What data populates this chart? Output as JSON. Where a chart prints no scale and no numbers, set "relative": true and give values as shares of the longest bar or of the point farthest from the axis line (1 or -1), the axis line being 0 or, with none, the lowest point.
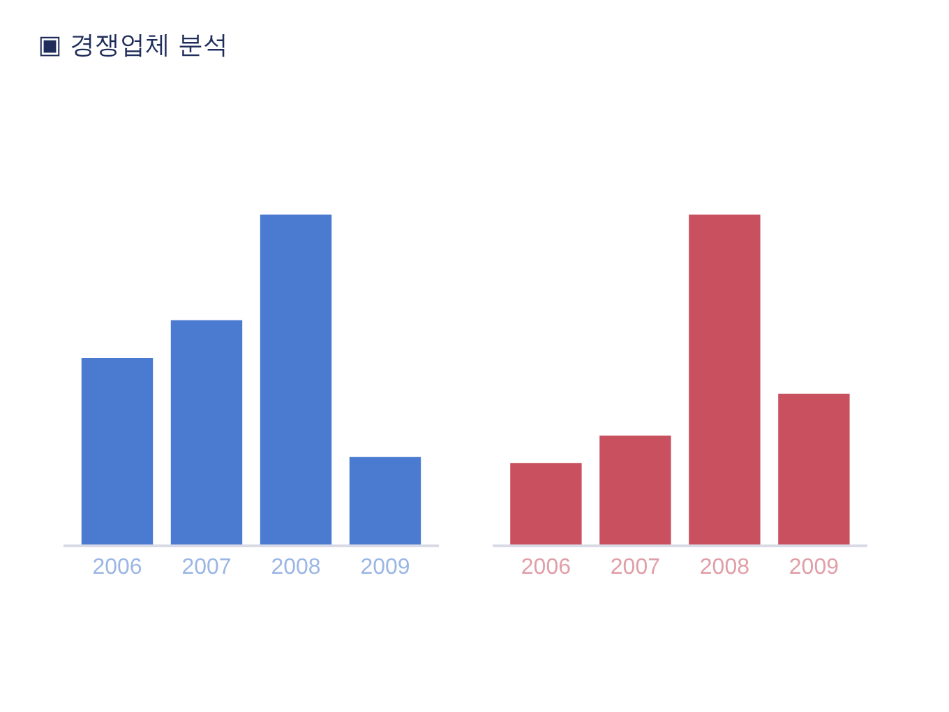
{
  "chart_data": [
    {
      "type": "bar",
      "title": "▣ 경쟁업체 분석",
      "relative": true,
      "categories": [
        "2006",
        "2007",
        "2008",
        "2009"
      ],
      "series": [
        {
          "color": "#4a7bd0",
          "values": [
            0.565,
            0.68,
            1,
            0.265
          ]
        }
      ]
    },
    {
      "type": "bar",
      "relative": true,
      "categories": [
        "2006",
        "2007",
        "2008",
        "2009"
      ],
      "series": [
        {
          "color": "#c8505f",
          "values": [
            0.247,
            0.33,
            1,
            0.457
          ]
        }
      ]
    }
  ]
}
